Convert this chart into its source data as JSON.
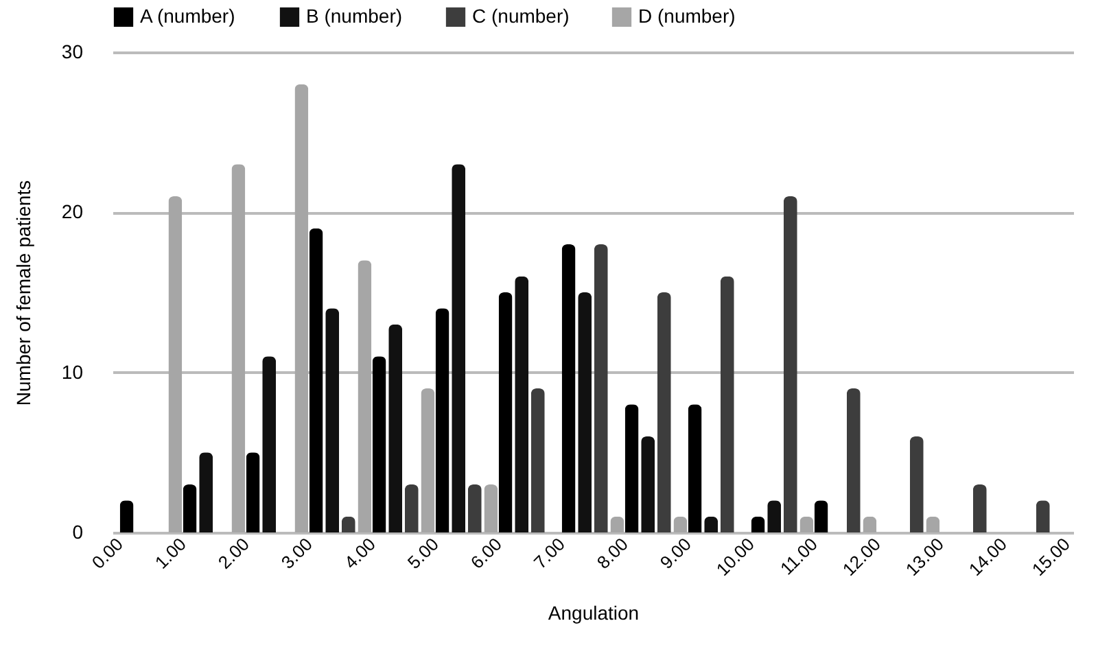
{
  "chart_data": {
    "type": "bar",
    "xlabel": "Angulation",
    "ylabel": "Number of female patients",
    "x": [
      0.5,
      1.5,
      2.5,
      3.5,
      4.5,
      5.5,
      6.5,
      7.5,
      8.5,
      9.5,
      10.5,
      11.5,
      12.5,
      13.5,
      14.5
    ],
    "xlim": [
      0,
      15
    ],
    "xticks": [
      {
        "value": 0,
        "label": "0.00"
      },
      {
        "value": 1,
        "label": "1.00"
      },
      {
        "value": 2,
        "label": "2.00"
      },
      {
        "value": 3,
        "label": "3.00"
      },
      {
        "value": 4,
        "label": "4.00"
      },
      {
        "value": 5,
        "label": "5.00"
      },
      {
        "value": 6,
        "label": "6.00"
      },
      {
        "value": 7,
        "label": "7.00"
      },
      {
        "value": 8,
        "label": "8.00"
      },
      {
        "value": 9,
        "label": "9.00"
      },
      {
        "value": 10,
        "label": "10.00"
      },
      {
        "value": 11,
        "label": "11.00"
      },
      {
        "value": 12,
        "label": "12.00"
      },
      {
        "value": 13,
        "label": "13.00"
      },
      {
        "value": 14,
        "label": "14.00"
      },
      {
        "value": 15,
        "label": "15.00"
      }
    ],
    "ylim": [
      0,
      30
    ],
    "yticks": [
      0,
      10,
      20,
      30
    ],
    "grid": "y",
    "legend": "top",
    "series": [
      {
        "name": "A (number)",
        "color": "#000000",
        "values": [
          2,
          3,
          5,
          19,
          11,
          14,
          15,
          18,
          8,
          8,
          1,
          2,
          0,
          0,
          0
        ]
      },
      {
        "name": "B (number)",
        "color": "#111111",
        "values": [
          0,
          5,
          11,
          14,
          13,
          23,
          16,
          15,
          6,
          1,
          2,
          0,
          0,
          0,
          0
        ]
      },
      {
        "name": "C (number)",
        "color": "#3d3d3d",
        "values": [
          0,
          0,
          0,
          1,
          3,
          3,
          9,
          18,
          15,
          16,
          21,
          9,
          6,
          3,
          2
        ]
      },
      {
        "name": "D (number)",
        "color": "#a6a6a6",
        "values": [
          21,
          23,
          28,
          17,
          9,
          3,
          0,
          1,
          1,
          0,
          1,
          1,
          1,
          0,
          0
        ]
      }
    ]
  }
}
